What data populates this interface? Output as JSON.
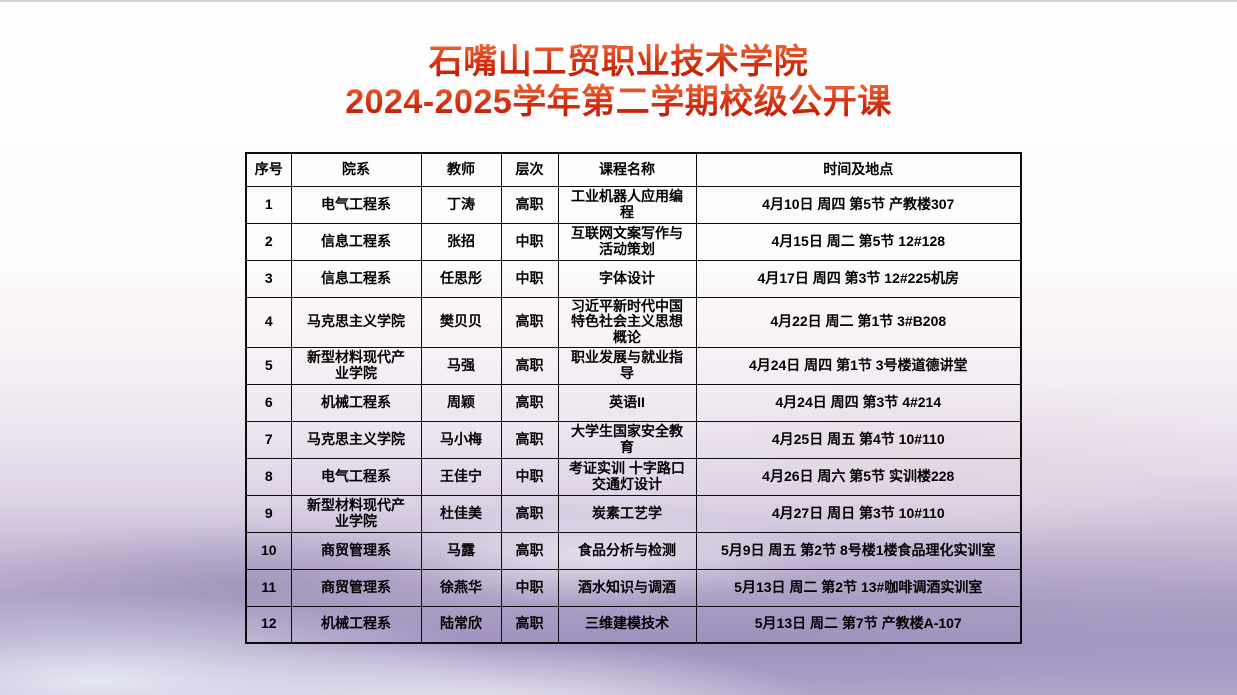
{
  "header": {
    "title_line1": "石嘴山工贸职业技术学院",
    "title_line2": "2024-2025学年第二学期校级公开课"
  },
  "table": {
    "columns": [
      "序号",
      "院系",
      "教师",
      "层次",
      "课程名称",
      "时间及地点"
    ],
    "rows": [
      {
        "no": "1",
        "dept": "电气工程系",
        "teacher": "丁涛",
        "level": "高职",
        "course": "工业机器人应用编程",
        "time": "4月10日 周四 第5节 产教楼307"
      },
      {
        "no": "2",
        "dept": "信息工程系",
        "teacher": "张招",
        "level": "中职",
        "course": "互联网文案写作与活动策划",
        "time": "4月15日 周二 第5节 12#128"
      },
      {
        "no": "3",
        "dept": "信息工程系",
        "teacher": "任思彤",
        "level": "中职",
        "course": "字体设计",
        "time": "4月17日 周四 第3节 12#225机房"
      },
      {
        "no": "4",
        "dept": "马克思主义学院",
        "teacher": "樊贝贝",
        "level": "高职",
        "course": "习近平新时代中国特色社会主义思想概论",
        "time": "4月22日 周二 第1节 3#B208"
      },
      {
        "no": "5",
        "dept": "新型材料现代产业学院",
        "teacher": "马强",
        "level": "高职",
        "course": "职业发展与就业指导",
        "time": "4月24日 周四 第1节 3号楼道德讲堂"
      },
      {
        "no": "6",
        "dept": "机械工程系",
        "teacher": "周颖",
        "level": "高职",
        "course": "英语II",
        "time": "4月24日 周四 第3节 4#214"
      },
      {
        "no": "7",
        "dept": "马克思主义学院",
        "teacher": "马小梅",
        "level": "高职",
        "course": "大学生国家安全教育",
        "time": "4月25日 周五 第4节 10#110"
      },
      {
        "no": "8",
        "dept": "电气工程系",
        "teacher": "王佳宁",
        "level": "中职",
        "course": "考证实训 十字路口交通灯设计",
        "time": "4月26日 周六 第5节 实训楼228"
      },
      {
        "no": "9",
        "dept": "新型材料现代产业学院",
        "teacher": "杜佳美",
        "level": "高职",
        "course": "炭素工艺学",
        "time": "4月27日 周日 第3节 10#110"
      },
      {
        "no": "10",
        "dept": "商贸管理系",
        "teacher": "马露",
        "level": "高职",
        "course": "食品分析与检测",
        "time": "5月9日 周五 第2节 8号楼1楼食品理化实训室"
      },
      {
        "no": "11",
        "dept": "商贸管理系",
        "teacher": "徐燕华",
        "level": "中职",
        "course": "酒水知识与调酒",
        "time": "5月13日 周二 第2节 13#咖啡调酒实训室"
      },
      {
        "no": "12",
        "dept": "机械工程系",
        "teacher": "陆常欣",
        "level": "高职",
        "course": "三维建模技术",
        "time": "5月13日 周二 第7节 产教楼A-107"
      }
    ]
  },
  "colors": {
    "title_gradient_top": "#ee6a39",
    "title_gradient_bottom": "#bb1402",
    "table_border": "#0d0d0d",
    "cell_text": "#000000",
    "cloud_purple": "#a294c0"
  }
}
